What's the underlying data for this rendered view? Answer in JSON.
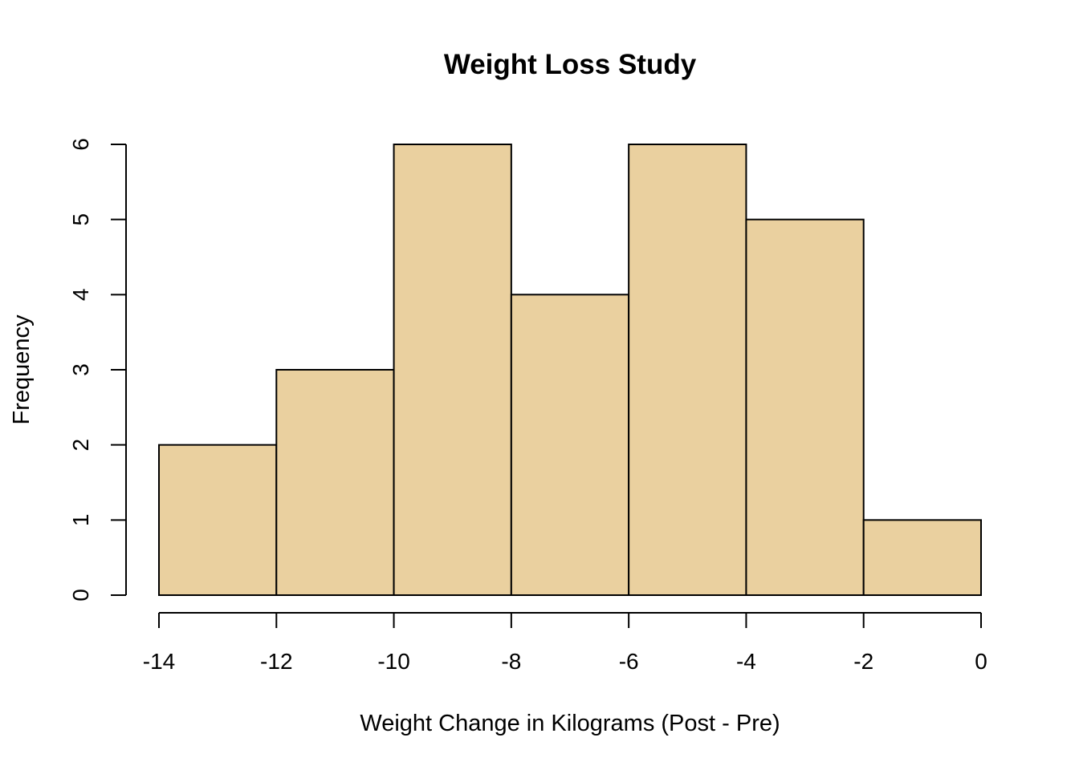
{
  "chart_data": {
    "type": "bar",
    "title": "Weight Loss Study",
    "xlabel": "Weight Change in Kilograms (Post - Pre)",
    "ylabel": "Frequency",
    "bins": [
      {
        "from": -14,
        "to": -12,
        "value": 2
      },
      {
        "from": -12,
        "to": -10,
        "value": 3
      },
      {
        "from": -10,
        "to": -8,
        "value": 6
      },
      {
        "from": -8,
        "to": -6,
        "value": 4
      },
      {
        "from": -6,
        "to": -4,
        "value": 6
      },
      {
        "from": -4,
        "to": -2,
        "value": 5
      },
      {
        "from": -2,
        "to": 0,
        "value": 1
      }
    ],
    "xlim": [
      -14,
      0
    ],
    "ylim": [
      0,
      6
    ],
    "x_ticks": [
      "-14",
      "-12",
      "-10",
      "-8",
      "-6",
      "-4",
      "-2",
      "0"
    ],
    "y_ticks": [
      "0",
      "1",
      "2",
      "3",
      "4",
      "5",
      "6"
    ],
    "bar_color": "#EAD09F",
    "grid": false
  }
}
